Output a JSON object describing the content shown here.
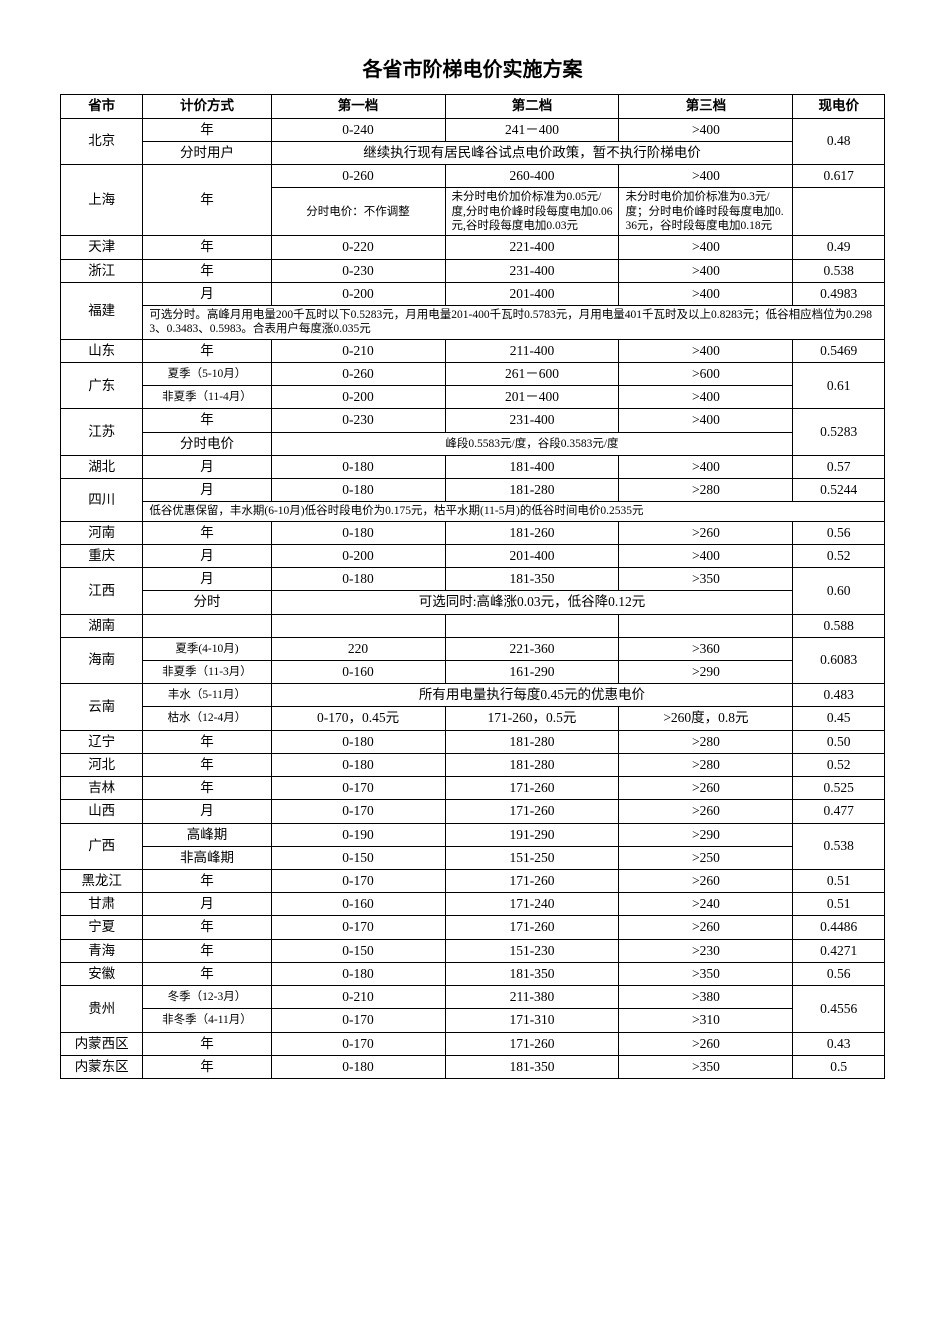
{
  "title": "各省市阶梯电价实施方案",
  "headers": {
    "province": "省市",
    "method": "计价方式",
    "tier1": "第一档",
    "tier2": "第二档",
    "tier3": "第三档",
    "price": "现电价"
  },
  "beijing": {
    "name": "北京",
    "r1_method": "年",
    "r1_t1": "0-240",
    "r1_t2": "241－400",
    "r1_t3": ">400",
    "r2_method": "分时用户",
    "r2_span": "继续执行现有居民峰谷试点电价政策，暂不执行阶梯电价",
    "price": "0.48"
  },
  "shanghai": {
    "name": "上海",
    "method": "年",
    "r1_t1": "0-260",
    "r1_t2": "260-400",
    "r1_t3": ">400",
    "r2_t1": "分时电价：不作调整",
    "r2_t2": "未分时电价加价标准为0.05元/度,分时电价峰时段每度电加0.06元,谷时段每度电加0.03元",
    "r2_t3": "未分时电价加价标准为0.3元/度；分时电价峰时段每度电加0.36元，谷时段每度电加0.18元",
    "price": "0.617"
  },
  "tianjin": {
    "name": "天津",
    "method": "年",
    "t1": "0-220",
    "t2": "221-400",
    "t3": ">400",
    "price": "0.49"
  },
  "zhejiang": {
    "name": "浙江",
    "method": "年",
    "t1": "0-230",
    "t2": "231-400",
    "t3": ">400",
    "price": "0.538"
  },
  "fujian": {
    "name": "福建",
    "r1_method": "月",
    "r1_t1": "0-200",
    "r1_t2": "201-400",
    "r1_t3": ">400",
    "r1_price": "0.4983",
    "note": "可选分时。高峰月用电量200千瓦时以下0.5283元，月用电量201-400千瓦时0.5783元，月用电量401千瓦时及以上0.8283元；低谷相应档位为0.2983、0.3483、0.5983。合表用户每度涨0.035元"
  },
  "shandong": {
    "name": "山东",
    "method": "年",
    "t1": "0-210",
    "t2": "211-400",
    "t3": ">400",
    "price": "0.5469"
  },
  "guangdong": {
    "name": "广东",
    "r1_method": "夏季（5-10月）",
    "r1_t1": "0-260",
    "r1_t2": "261－600",
    "r1_t3": ">600",
    "r2_method": "非夏季（11-4月）",
    "r2_t1": "0-200",
    "r2_t2": "201－400",
    "r2_t3": ">400",
    "price": "0.61"
  },
  "jiangsu": {
    "name": "江苏",
    "r1_method": "年",
    "r1_t1": "0-230",
    "r1_t2": "231-400",
    "r1_t3": ">400",
    "r2_method": "分时电价",
    "r2_span": "峰段0.5583元/度，谷段0.3583元/度",
    "price": "0.5283"
  },
  "hubei": {
    "name": "湖北",
    "method": "月",
    "t1": "0-180",
    "t2": "181-400",
    "t3": ">400",
    "price": "0.57"
  },
  "sichuan": {
    "name": "四川",
    "r1_method": "月",
    "r1_t1": "0-180",
    "r1_t2": "181-280",
    "r1_t3": ">280",
    "r1_price": "0.5244",
    "note": "低谷优惠保留，丰水期(6-10月)低谷时段电价为0.175元，枯平水期(11-5月)的低谷时间电价0.2535元"
  },
  "henan": {
    "name": "河南",
    "method": "年",
    "t1": "0-180",
    "t2": "181-260",
    "t3": ">260",
    "price": "0.56"
  },
  "chongqing": {
    "name": "重庆",
    "method": "月",
    "t1": "0-200",
    "t2": "201-400",
    "t3": ">400",
    "price": "0.52"
  },
  "jiangxi": {
    "name": "江西",
    "r1_method": "月",
    "r1_t1": "0-180",
    "r1_t2": "181-350",
    "r1_t3": ">350",
    "r2_method": "分时",
    "r2_span": "可选同时:高峰涨0.03元，低谷降0.12元",
    "price": "0.60"
  },
  "hunan": {
    "name": "湖南",
    "method": "",
    "t1": "",
    "t2": "",
    "t3": "",
    "price": "0.588"
  },
  "hainan": {
    "name": "海南",
    "r1_method": "夏季(4-10月)",
    "r1_t1": "220",
    "r1_t2": "221-360",
    "r1_t3": ">360",
    "r2_method": "非夏季（11-3月）",
    "r2_t1": "0-160",
    "r2_t2": "161-290",
    "r2_t3": ">290",
    "price": "0.6083"
  },
  "yunnan": {
    "name": "云南",
    "r1_method": "丰水（5-11月）",
    "r1_span": "所有用电量执行每度0.45元的优惠电价",
    "r1_price": "0.483",
    "r2_method": "枯水（12-4月）",
    "r2_t1": "0-170，0.45元",
    "r2_t2": "171-260，0.5元",
    "r2_t3": ">260度，0.8元",
    "r2_price": "0.45"
  },
  "liaoning": {
    "name": "辽宁",
    "method": "年",
    "t1": "0-180",
    "t2": "181-280",
    "t3": ">280",
    "price": "0.50"
  },
  "hebei": {
    "name": "河北",
    "method": "年",
    "t1": "0-180",
    "t2": "181-280",
    "t3": ">280",
    "price": "0.52"
  },
  "jilin": {
    "name": "吉林",
    "method": "年",
    "t1": "0-170",
    "t2": "171-260",
    "t3": ">260",
    "price": "0.525"
  },
  "shanxi": {
    "name": "山西",
    "method": "月",
    "t1": "0-170",
    "t2": "171-260",
    "t3": ">260",
    "price": "0.477"
  },
  "guangxi": {
    "name": "广西",
    "r1_method": "高峰期",
    "r1_t1": "0-190",
    "r1_t2": "191-290",
    "r1_t3": ">290",
    "r2_method": "非高峰期",
    "r2_t1": "0-150",
    "r2_t2": "151-250",
    "r2_t3": ">250",
    "price": "0.538"
  },
  "heilongjiang": {
    "name": "黑龙江",
    "method": "年",
    "t1": "0-170",
    "t2": "171-260",
    "t3": ">260",
    "price": "0.51"
  },
  "gansu": {
    "name": "甘肃",
    "method": "月",
    "t1": "0-160",
    "t2": "171-240",
    "t3": ">240",
    "price": "0.51"
  },
  "ningxia": {
    "name": "宁夏",
    "method": "年",
    "t1": "0-170",
    "t2": "171-260",
    "t3": ">260",
    "price": "0.4486"
  },
  "qinghai": {
    "name": "青海",
    "method": "年",
    "t1": "0-150",
    "t2": "151-230",
    "t3": ">230",
    "price": "0.4271"
  },
  "anhui": {
    "name": "安徽",
    "method": "年",
    "t1": "0-180",
    "t2": "181-350",
    "t3": ">350",
    "price": "0.56"
  },
  "guizhou": {
    "name": "贵州",
    "r1_method": "冬季（12-3月）",
    "r1_t1": "0-210",
    "r1_t2": "211-380",
    "r1_t3": ">380",
    "r2_method": "非冬季（4-11月）",
    "r2_t1": "0-170",
    "r2_t2": "171-310",
    "r2_t3": ">310",
    "price": "0.4556"
  },
  "neimengxi": {
    "name": "内蒙西区",
    "method": "年",
    "t1": "0-170",
    "t2": "171-260",
    "t3": ">260",
    "price": "0.43"
  },
  "neimengdong": {
    "name": "内蒙东区",
    "method": "年",
    "t1": "0-180",
    "t2": "181-350",
    "t3": ">350",
    "price": "0.5"
  }
}
